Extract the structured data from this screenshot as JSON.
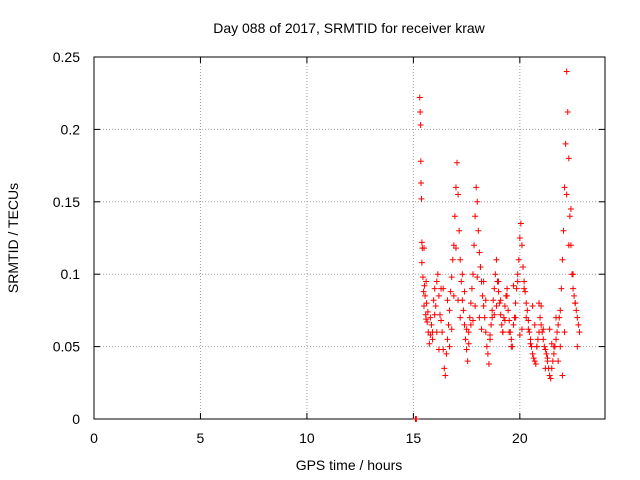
{
  "chart_data": {
    "type": "scatter",
    "title": "Day 088 of 2017, SRMTID for receiver kraw",
    "xlabel": "GPS time / hours",
    "ylabel": "SRMTID / TECUs",
    "xlim": [
      0,
      24
    ],
    "ylim": [
      0,
      0.25
    ],
    "xticks": [
      0,
      5,
      10,
      15,
      20
    ],
    "xtick_labels": [
      "0",
      "5",
      "10",
      "15",
      "20"
    ],
    "yticks": [
      0,
      0.05,
      0.1,
      0.15,
      0.2,
      0.25
    ],
    "ytick_labels": [
      "0",
      "0.05",
      "0.1",
      "0.15",
      "0.2",
      "0.25"
    ],
    "grid": true,
    "marker": "+",
    "color": "#ff0000",
    "series": [
      {
        "name": "SRMTID",
        "x": [
          15.1,
          15.12,
          15.14,
          15.3,
          15.32,
          15.34,
          15.35,
          15.36,
          15.38,
          15.4,
          15.42,
          15.45,
          15.48,
          15.5,
          15.52,
          15.55,
          15.58,
          15.6,
          15.62,
          15.65,
          15.68,
          15.7,
          15.75,
          15.8,
          15.85,
          15.9,
          15.95,
          16.0,
          16.05,
          16.1,
          16.15,
          16.2,
          16.25,
          16.3,
          16.35,
          16.4,
          16.45,
          16.5,
          16.55,
          16.6,
          16.65,
          16.7,
          16.75,
          16.8,
          16.85,
          16.9,
          16.95,
          17.0,
          17.05,
          17.1,
          17.15,
          17.2,
          17.25,
          17.3,
          17.35,
          17.4,
          17.45,
          17.5,
          17.55,
          17.6,
          17.65,
          17.7,
          17.75,
          17.8,
          17.85,
          17.9,
          17.95,
          18.0,
          18.05,
          18.1,
          18.15,
          18.2,
          18.25,
          18.3,
          18.35,
          18.4,
          18.45,
          18.5,
          18.55,
          18.6,
          18.65,
          18.7,
          18.75,
          18.8,
          18.85,
          18.9,
          18.95,
          19.0,
          19.05,
          19.1,
          19.15,
          19.2,
          19.25,
          19.3,
          19.35,
          19.4,
          19.45,
          19.5,
          19.55,
          19.6,
          19.65,
          19.7,
          19.75,
          19.8,
          19.85,
          19.9,
          19.95,
          20.0,
          20.05,
          20.1,
          20.15,
          20.2,
          20.25,
          20.3,
          20.35,
          20.4,
          20.45,
          20.5,
          20.55,
          20.6,
          20.65,
          20.7,
          20.75,
          20.8,
          20.85,
          20.9,
          20.95,
          21.0,
          21.05,
          21.1,
          21.15,
          21.2,
          21.25,
          21.3,
          21.35,
          21.4,
          21.45,
          21.5,
          21.55,
          21.6,
          21.65,
          21.7,
          21.75,
          21.8,
          21.85,
          21.9,
          21.95,
          22.0,
          22.05,
          22.1,
          22.15,
          22.2,
          22.25,
          22.3,
          22.35,
          22.4,
          22.45,
          22.5,
          22.55,
          22.6,
          22.65,
          22.7,
          22.75,
          22.8,
          15.4,
          15.6,
          15.8,
          16.0,
          16.2,
          16.4,
          16.6,
          16.8,
          17.0,
          17.2,
          17.4,
          17.6,
          17.8,
          18.0,
          18.2,
          18.4,
          18.6,
          18.8,
          19.0,
          19.2,
          19.4,
          19.6,
          19.8,
          20.0,
          20.2,
          20.4,
          20.6,
          20.8,
          21.0,
          21.2,
          21.4,
          21.6,
          21.8,
          22.0,
          22.2,
          22.4,
          22.6,
          15.5,
          15.9,
          16.3,
          16.7,
          17.1,
          17.5,
          17.9,
          18.3,
          18.7,
          19.1,
          19.5,
          19.9,
          20.3,
          20.7,
          21.1,
          21.5,
          21.9,
          22.3,
          22.7,
          16.1,
          16.9,
          17.3,
          17.7,
          18.1,
          18.9,
          19.3,
          19.7,
          20.1,
          20.5,
          20.9,
          21.3,
          21.7,
          22.1,
          22.5
        ],
        "y": [
          0.0,
          0.0,
          0.0,
          0.222,
          0.212,
          0.203,
          0.178,
          0.163,
          0.152,
          0.122,
          0.118,
          0.098,
          0.088,
          0.078,
          0.092,
          0.085,
          0.072,
          0.069,
          0.08,
          0.067,
          0.074,
          0.06,
          0.052,
          0.07,
          0.065,
          0.055,
          0.082,
          0.09,
          0.078,
          0.095,
          0.1,
          0.085,
          0.072,
          0.068,
          0.06,
          0.048,
          0.035,
          0.03,
          0.045,
          0.055,
          0.065,
          0.075,
          0.088,
          0.098,
          0.11,
          0.12,
          0.14,
          0.16,
          0.177,
          0.155,
          0.13,
          0.11,
          0.095,
          0.082,
          0.075,
          0.065,
          0.055,
          0.048,
          0.04,
          0.06,
          0.07,
          0.08,
          0.09,
          0.1,
          0.12,
          0.14,
          0.16,
          0.15,
          0.13,
          0.115,
          0.105,
          0.095,
          0.085,
          0.078,
          0.07,
          0.06,
          0.05,
          0.045,
          0.038,
          0.055,
          0.065,
          0.075,
          0.082,
          0.09,
          0.1,
          0.11,
          0.095,
          0.088,
          0.08,
          0.072,
          0.065,
          0.06,
          0.07,
          0.078,
          0.085,
          0.09,
          0.075,
          0.068,
          0.06,
          0.055,
          0.05,
          0.065,
          0.07,
          0.08,
          0.09,
          0.1,
          0.11,
          0.125,
          0.135,
          0.12,
          0.105,
          0.095,
          0.088,
          0.08,
          0.075,
          0.068,
          0.06,
          0.055,
          0.05,
          0.045,
          0.042,
          0.04,
          0.038,
          0.05,
          0.055,
          0.06,
          0.07,
          0.065,
          0.06,
          0.055,
          0.05,
          0.048,
          0.045,
          0.04,
          0.035,
          0.03,
          0.028,
          0.035,
          0.04,
          0.045,
          0.05,
          0.055,
          0.06,
          0.065,
          0.07,
          0.075,
          0.09,
          0.11,
          0.13,
          0.16,
          0.19,
          0.24,
          0.212,
          0.18,
          0.14,
          0.12,
          0.1,
          0.09,
          0.085,
          0.08,
          0.075,
          0.07,
          0.065,
          0.06,
          0.108,
          0.095,
          0.058,
          0.072,
          0.048,
          0.09,
          0.082,
          0.062,
          0.118,
          0.07,
          0.088,
          0.052,
          0.068,
          0.098,
          0.062,
          0.082,
          0.058,
          0.072,
          0.095,
          0.06,
          0.085,
          0.05,
          0.07,
          0.058,
          0.09,
          0.062,
          0.078,
          0.05,
          0.078,
          0.035,
          0.062,
          0.05,
          0.04,
          0.03,
          0.155,
          0.145,
          0.08,
          0.118,
          0.06,
          0.09,
          0.05,
          0.082,
          0.062,
          0.078,
          0.095,
          0.07,
          0.082,
          0.06,
          0.095,
          0.07,
          0.065,
          0.062,
          0.052,
          0.05,
          0.12,
          0.05,
          0.06,
          0.085,
          0.1,
          0.065,
          0.07,
          0.078,
          0.068,
          0.092,
          0.062,
          0.052,
          0.08,
          0.042,
          0.07,
          0.06,
          0.1
        ]
      }
    ]
  }
}
